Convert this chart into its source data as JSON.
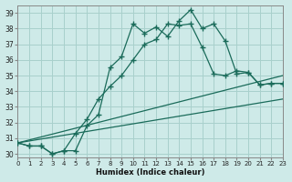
{
  "xlabel": "Humidex (Indice chaleur)",
  "xlim": [
    0,
    23
  ],
  "ylim": [
    29.8,
    39.5
  ],
  "xticks": [
    0,
    1,
    2,
    3,
    4,
    5,
    6,
    7,
    8,
    9,
    10,
    11,
    12,
    13,
    14,
    15,
    16,
    17,
    18,
    19,
    20,
    21,
    22,
    23
  ],
  "yticks": [
    30,
    31,
    32,
    33,
    34,
    35,
    36,
    37,
    38,
    39
  ],
  "background_color": "#ceeae8",
  "grid_color": "#a8d0cc",
  "line_color": "#1a6b5a",
  "line1_x": [
    0,
    1,
    2,
    3,
    4,
    5,
    6,
    7,
    8,
    9,
    10,
    11,
    12,
    13,
    14,
    15,
    16,
    17,
    18,
    19,
    20,
    21,
    22,
    23
  ],
  "line1_y": [
    30.7,
    30.5,
    30.5,
    30.0,
    30.2,
    30.2,
    31.8,
    32.5,
    35.5,
    36.2,
    38.3,
    37.7,
    38.1,
    37.5,
    38.5,
    39.2,
    38.0,
    38.3,
    37.2,
    35.1,
    35.2,
    34.4,
    34.5,
    34.5
  ],
  "line2_x": [
    0,
    1,
    2,
    3,
    4,
    5,
    6,
    7,
    8,
    9,
    10,
    11,
    12,
    13,
    14,
    15,
    16,
    17,
    18,
    19,
    20,
    21,
    22,
    23
  ],
  "line2_y": [
    30.7,
    30.5,
    30.5,
    30.0,
    30.2,
    31.3,
    32.2,
    33.5,
    34.3,
    35.0,
    36.0,
    37.0,
    37.3,
    38.3,
    38.2,
    38.3,
    36.8,
    35.1,
    35.0,
    35.3,
    35.2,
    34.4,
    34.5,
    34.5
  ],
  "line3_x": [
    0,
    23
  ],
  "line3_y": [
    30.7,
    35.0
  ],
  "line4_x": [
    0,
    23
  ],
  "line4_y": [
    30.7,
    33.5
  ]
}
